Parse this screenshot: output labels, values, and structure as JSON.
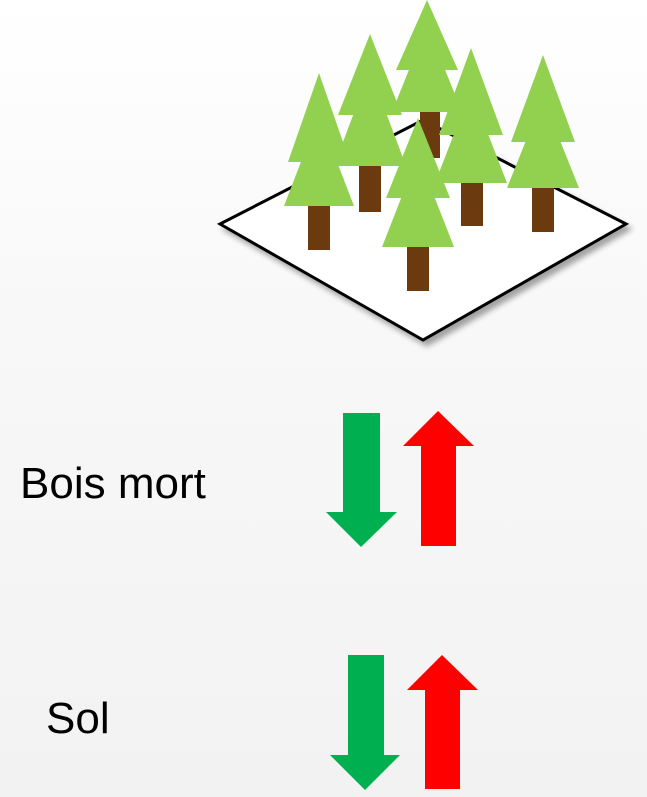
{
  "labels": {
    "dead_wood": "Bois mort",
    "soil": "Sol"
  },
  "colors": {
    "tree_foliage": "#92d050",
    "tree_trunk": "#6b3a0e",
    "plot_outline": "#000000",
    "arrow_down": "#00b050",
    "arrow_up": "#ff0000"
  },
  "icons": {
    "forest_plot": "forest-plot-icon",
    "arrow_down": "arrow-down-icon",
    "arrow_up": "arrow-up-icon"
  }
}
